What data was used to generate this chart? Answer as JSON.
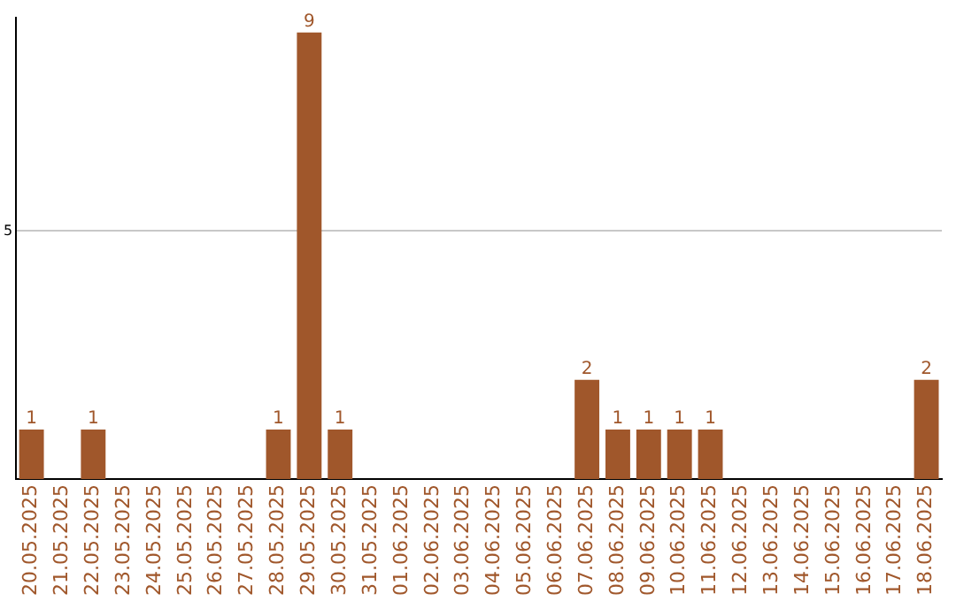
{
  "chart_data": {
    "type": "bar",
    "categories": [
      "20.05.2025",
      "21.05.2025",
      "22.05.2025",
      "23.05.2025",
      "24.05.2025",
      "25.05.2025",
      "26.05.2025",
      "27.05.2025",
      "28.05.2025",
      "29.05.2025",
      "30.05.2025",
      "31.05.2025",
      "01.06.2025",
      "02.06.2025",
      "03.06.2025",
      "04.06.2025",
      "05.06.2025",
      "06.06.2025",
      "07.06.2025",
      "08.06.2025",
      "09.06.2025",
      "10.06.2025",
      "11.06.2025",
      "12.06.2025",
      "13.06.2025",
      "14.06.2025",
      "15.06.2025",
      "16.06.2025",
      "17.06.2025",
      "18.06.2025"
    ],
    "values": [
      1,
      0,
      1,
      0,
      0,
      0,
      0,
      0,
      1,
      9,
      1,
      0,
      0,
      0,
      0,
      0,
      0,
      0,
      2,
      1,
      1,
      1,
      1,
      0,
      0,
      0,
      0,
      0,
      0,
      2
    ],
    "value_labels": [
      "1",
      null,
      "1",
      null,
      null,
      null,
      null,
      null,
      "1",
      "9",
      "1",
      null,
      null,
      null,
      null,
      null,
      null,
      null,
      "2",
      "1",
      "1",
      "1",
      "1",
      null,
      null,
      null,
      null,
      null,
      null,
      "2"
    ],
    "color": "#a0572b",
    "ylim": [
      0,
      9.3
    ],
    "yticks": [
      5
    ],
    "grid": "y",
    "legend": false
  }
}
